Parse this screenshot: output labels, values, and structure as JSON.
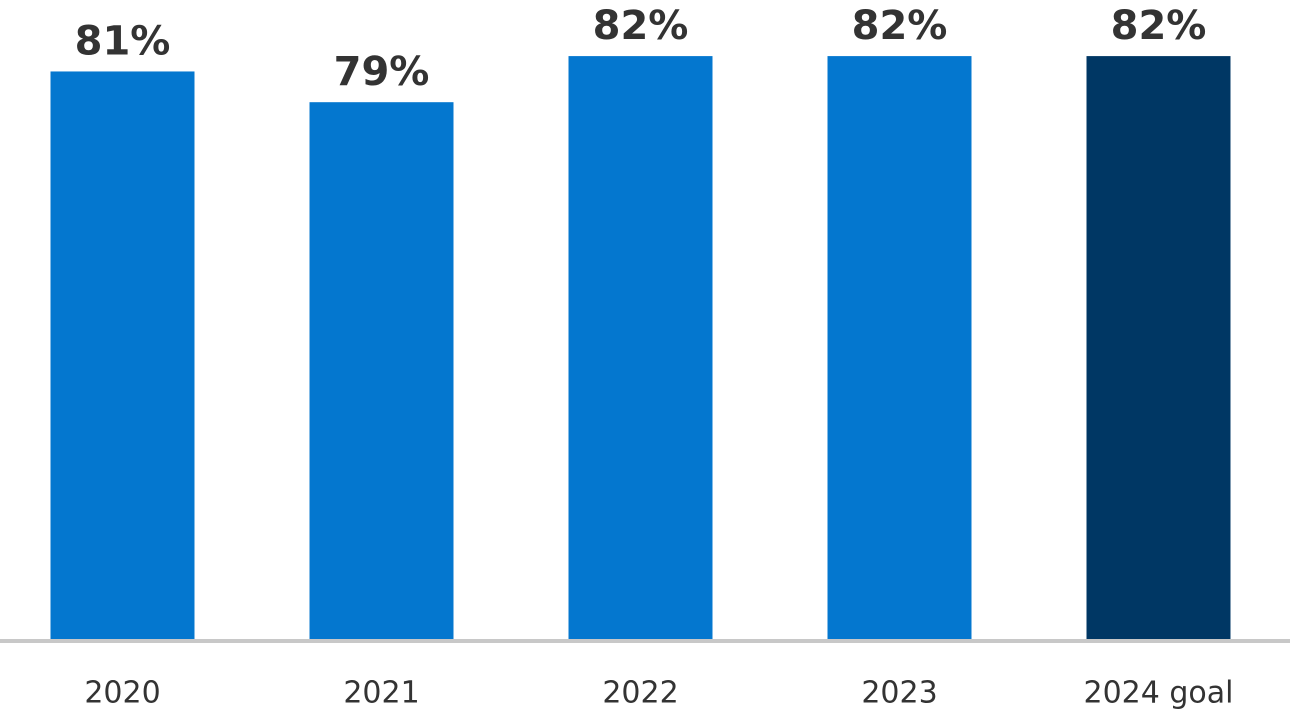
{
  "chart_data": {
    "type": "bar",
    "categories": [
      "2020",
      "2021",
      "2022",
      "2023",
      "2024 goal"
    ],
    "values": [
      81,
      79,
      82,
      82,
      82
    ],
    "value_labels": [
      "81%",
      "79%",
      "82%",
      "82%",
      "82%"
    ],
    "colors": [
      "#0477cf",
      "#0477cf",
      "#0477cf",
      "#0477cf",
      "#003764"
    ],
    "ylim": [
      44,
      85
    ]
  }
}
